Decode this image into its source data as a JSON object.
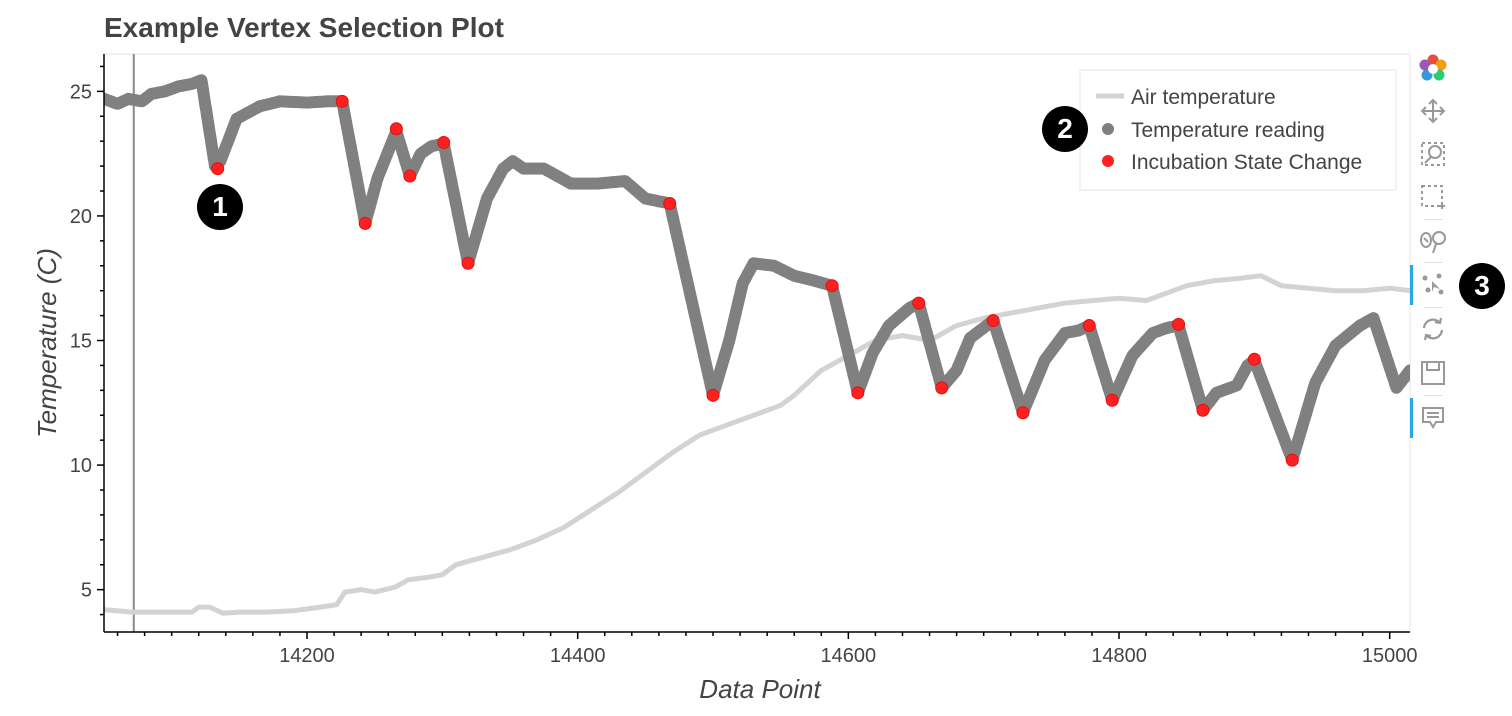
{
  "chart_data": {
    "type": "line",
    "title": "Example Vertex Selection Plot",
    "xlabel": "Data Point",
    "ylabel": "Temperature (C)",
    "xlim": [
      14050,
      15015
    ],
    "ylim": [
      3.3,
      26.5
    ],
    "x_ticks": [
      14200,
      14400,
      14600,
      14800,
      15000
    ],
    "y_ticks": [
      5,
      10,
      15,
      20,
      25
    ],
    "grid": false,
    "legend_position": "top-right",
    "vertical_line_x": 14072,
    "series": [
      {
        "name": "Air temperature",
        "kind": "line",
        "color": "#d3d3d3",
        "points": [
          [
            14050,
            4.2
          ],
          [
            14070,
            4.1
          ],
          [
            14090,
            4.1
          ],
          [
            14115,
            4.1
          ],
          [
            14120,
            4.3
          ],
          [
            14128,
            4.3
          ],
          [
            14138,
            4.05
          ],
          [
            14150,
            4.1
          ],
          [
            14170,
            4.1
          ],
          [
            14190,
            4.15
          ],
          [
            14210,
            4.3
          ],
          [
            14222,
            4.4
          ],
          [
            14228,
            4.9
          ],
          [
            14240,
            5.0
          ],
          [
            14250,
            4.9
          ],
          [
            14265,
            5.1
          ],
          [
            14275,
            5.4
          ],
          [
            14290,
            5.5
          ],
          [
            14300,
            5.6
          ],
          [
            14310,
            6.0
          ],
          [
            14330,
            6.3
          ],
          [
            14350,
            6.6
          ],
          [
            14370,
            7.0
          ],
          [
            14390,
            7.5
          ],
          [
            14410,
            8.2
          ],
          [
            14430,
            8.9
          ],
          [
            14450,
            9.7
          ],
          [
            14470,
            10.5
          ],
          [
            14490,
            11.2
          ],
          [
            14510,
            11.6
          ],
          [
            14530,
            12.0
          ],
          [
            14550,
            12.4
          ],
          [
            14560,
            12.8
          ],
          [
            14580,
            13.8
          ],
          [
            14600,
            14.4
          ],
          [
            14620,
            15.0
          ],
          [
            14640,
            15.2
          ],
          [
            14660,
            15.0
          ],
          [
            14680,
            15.6
          ],
          [
            14700,
            15.9
          ],
          [
            14720,
            16.1
          ],
          [
            14740,
            16.3
          ],
          [
            14760,
            16.5
          ],
          [
            14780,
            16.6
          ],
          [
            14800,
            16.7
          ],
          [
            14820,
            16.6
          ],
          [
            14835,
            16.9
          ],
          [
            14850,
            17.2
          ],
          [
            14870,
            17.4
          ],
          [
            14890,
            17.5
          ],
          [
            14905,
            17.6
          ],
          [
            14920,
            17.2
          ],
          [
            14940,
            17.1
          ],
          [
            14960,
            17.0
          ],
          [
            14980,
            17.0
          ],
          [
            15000,
            17.1
          ],
          [
            15015,
            17.0
          ]
        ]
      },
      {
        "name": "Temperature reading",
        "kind": "scatter",
        "color": "#808080",
        "points": [
          [
            14050,
            24.7
          ],
          [
            14060,
            24.5
          ],
          [
            14068,
            24.7
          ],
          [
            14078,
            24.6
          ],
          [
            14085,
            24.9
          ],
          [
            14095,
            25.0
          ],
          [
            14105,
            25.2
          ],
          [
            14115,
            25.3
          ],
          [
            14122,
            25.45
          ],
          [
            14132,
            22.0
          ],
          [
            14136,
            22.2
          ],
          [
            14148,
            23.9
          ],
          [
            14165,
            24.4
          ],
          [
            14180,
            24.6
          ],
          [
            14200,
            24.55
          ],
          [
            14215,
            24.6
          ],
          [
            14226,
            24.6
          ],
          [
            14243,
            19.7
          ],
          [
            14252,
            21.5
          ],
          [
            14266,
            23.4
          ],
          [
            14276,
            21.6
          ],
          [
            14284,
            22.5
          ],
          [
            14292,
            22.8
          ],
          [
            14301,
            22.9
          ],
          [
            14319,
            18.1
          ],
          [
            14333,
            20.7
          ],
          [
            14345,
            21.9
          ],
          [
            14352,
            22.2
          ],
          [
            14360,
            21.9
          ],
          [
            14375,
            21.9
          ],
          [
            14395,
            21.3
          ],
          [
            14415,
            21.3
          ],
          [
            14435,
            21.4
          ],
          [
            14450,
            20.7
          ],
          [
            14468,
            20.5
          ],
          [
            14500,
            12.8
          ],
          [
            14512,
            15.0
          ],
          [
            14522,
            17.3
          ],
          [
            14530,
            18.1
          ],
          [
            14545,
            18.0
          ],
          [
            14560,
            17.6
          ],
          [
            14575,
            17.4
          ],
          [
            14588,
            17.2
          ],
          [
            14607,
            12.9
          ],
          [
            14618,
            14.5
          ],
          [
            14630,
            15.6
          ],
          [
            14645,
            16.3
          ],
          [
            14652,
            16.5
          ],
          [
            14669,
            13.1
          ],
          [
            14680,
            13.8
          ],
          [
            14690,
            15.1
          ],
          [
            14707,
            15.8
          ],
          [
            14729,
            12.1
          ],
          [
            14745,
            14.2
          ],
          [
            14760,
            15.3
          ],
          [
            14770,
            15.4
          ],
          [
            14778,
            15.6
          ],
          [
            14795,
            12.6
          ],
          [
            14810,
            14.4
          ],
          [
            14825,
            15.3
          ],
          [
            14835,
            15.5
          ],
          [
            14844,
            15.6
          ],
          [
            14862,
            12.2
          ],
          [
            14872,
            12.9
          ],
          [
            14887,
            13.2
          ],
          [
            14895,
            14.0
          ],
          [
            14900,
            14.2
          ],
          [
            14928,
            10.2
          ],
          [
            14945,
            13.3
          ],
          [
            14960,
            14.8
          ],
          [
            14978,
            15.6
          ],
          [
            14988,
            15.9
          ],
          [
            15005,
            13.1
          ],
          [
            15015,
            13.8
          ]
        ]
      },
      {
        "name": "Incubation State Change",
        "kind": "scatter",
        "color": "#ff2020",
        "points": [
          [
            14134,
            21.9
          ],
          [
            14226,
            24.6
          ],
          [
            14243,
            19.7
          ],
          [
            14266,
            23.5
          ],
          [
            14276,
            21.6
          ],
          [
            14301,
            22.95
          ],
          [
            14319,
            18.1
          ],
          [
            14468,
            20.5
          ],
          [
            14500,
            12.8
          ],
          [
            14588,
            17.2
          ],
          [
            14607,
            12.9
          ],
          [
            14652,
            16.5
          ],
          [
            14669,
            13.1
          ],
          [
            14707,
            15.8
          ],
          [
            14729,
            12.1
          ],
          [
            14778,
            15.6
          ],
          [
            14795,
            12.6
          ],
          [
            14844,
            15.65
          ],
          [
            14862,
            12.2
          ],
          [
            14900,
            14.25
          ],
          [
            14928,
            10.2
          ]
        ]
      }
    ]
  },
  "toolbar": {
    "tools": [
      "bokeh-logo-icon",
      "pan-icon",
      "box-zoom-icon",
      "box-select-icon",
      "lasso-select-icon",
      "point-draw-icon",
      "reset-icon",
      "save-icon",
      "hover-icon"
    ],
    "active_tools": [
      "point-draw-icon",
      "hover-icon"
    ],
    "accent_color": "#26aae1"
  },
  "callouts": [
    "1",
    "2",
    "3"
  ]
}
